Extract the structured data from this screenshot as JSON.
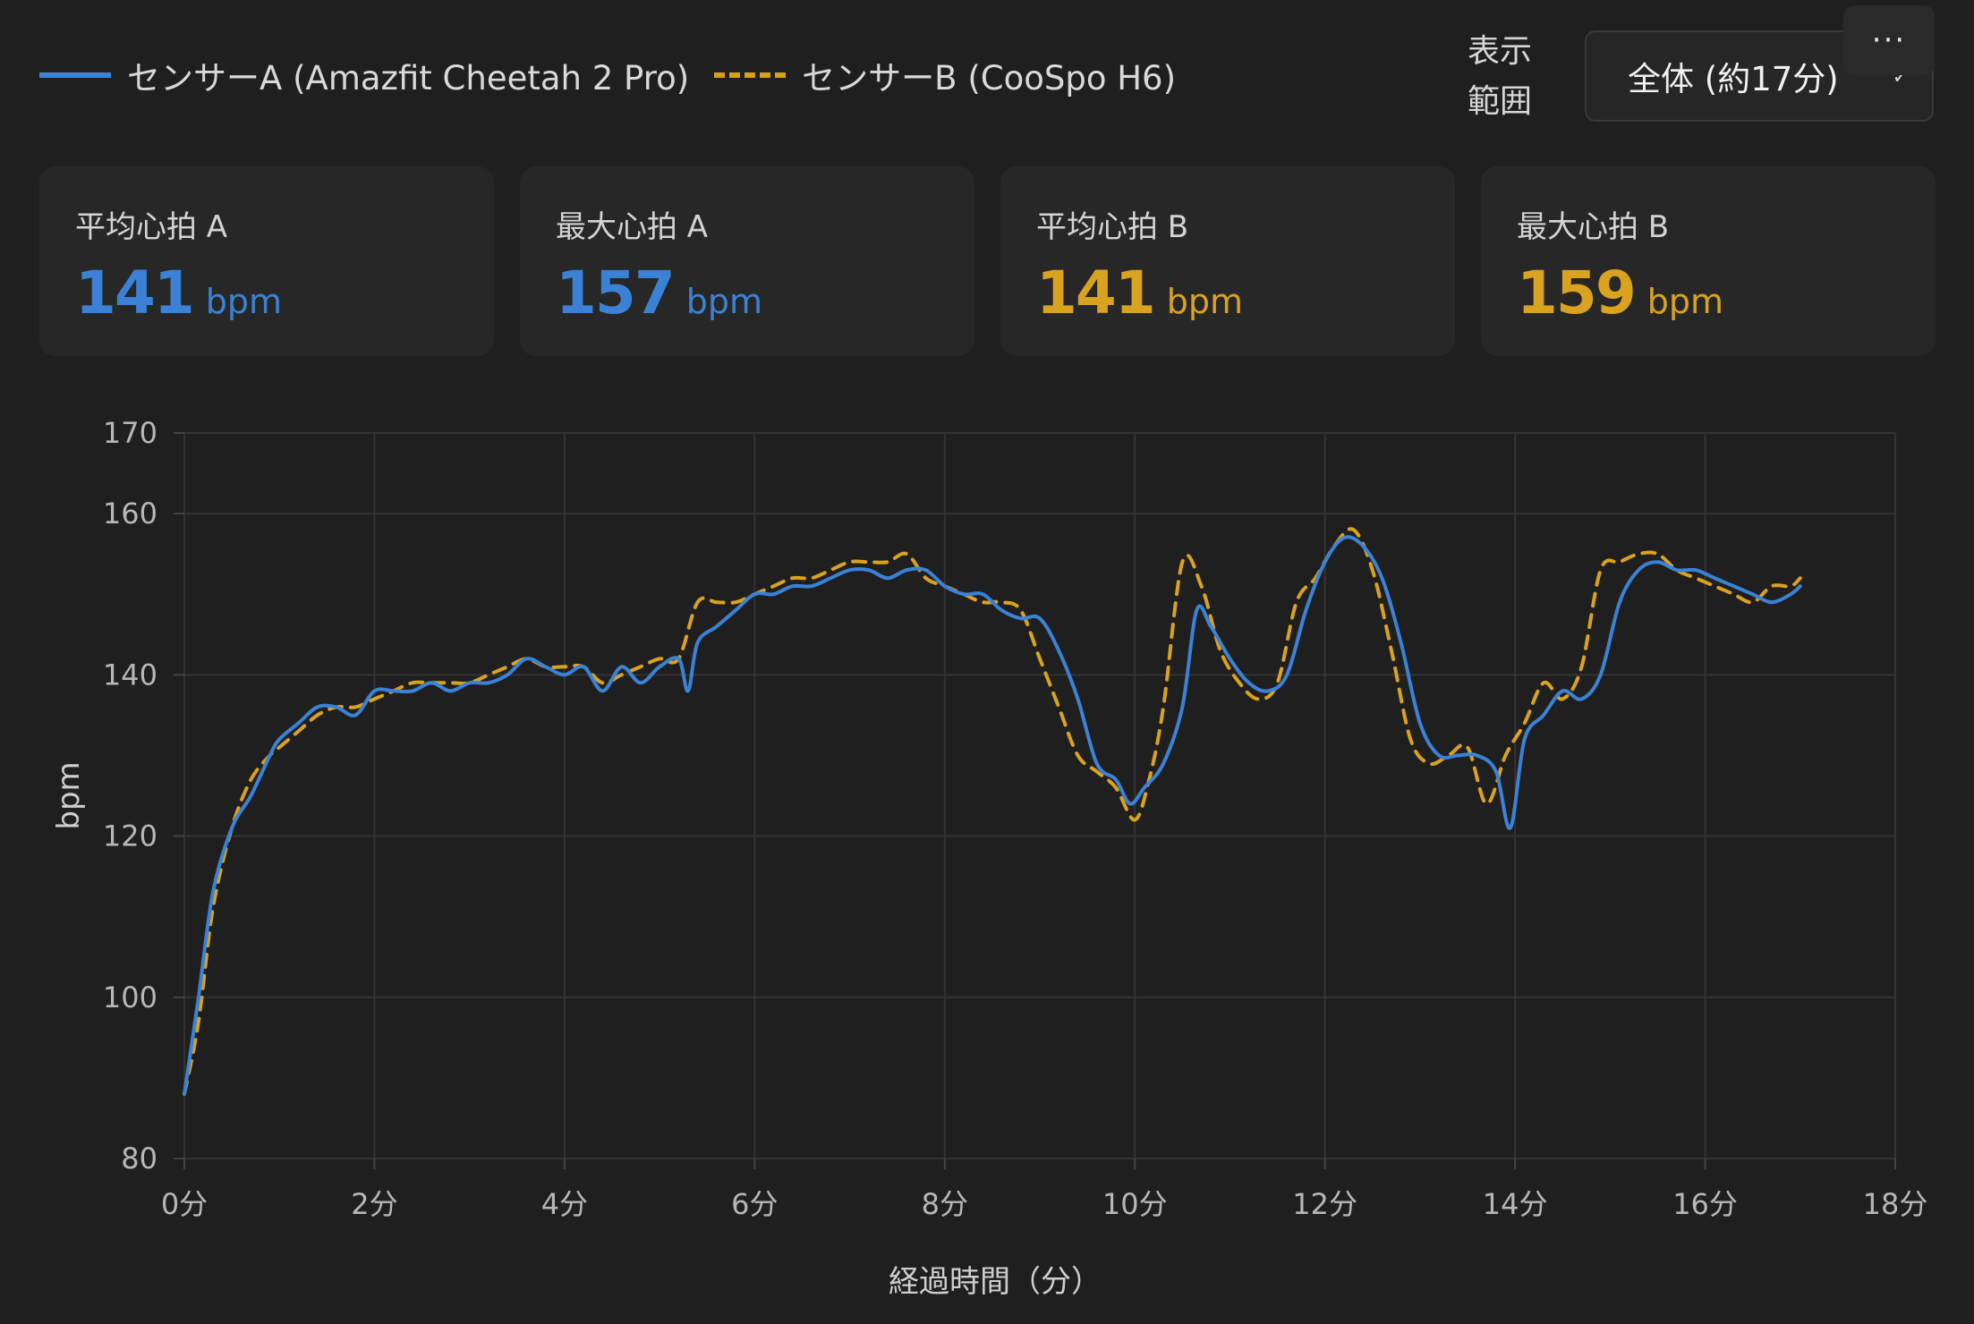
{
  "legend": {
    "a_label": "センサーA (Amazfit Cheetah 2 Pro)",
    "b_label": "センサーB (CooSpo H6)"
  },
  "range": {
    "label": "表示範囲",
    "label_line1": "表示",
    "label_line2": "範囲",
    "selected": "全体 (約17分)",
    "chevron_icon": "chevron-down-icon"
  },
  "more_button": {
    "label": "···",
    "icon": "more-horizontal-icon"
  },
  "stats": [
    {
      "label": "平均心拍 A",
      "value": "141",
      "unit": "bpm",
      "color": "#3b82d6"
    },
    {
      "label": "最大心拍 A",
      "value": "157",
      "unit": "bpm",
      "color": "#3b82d6"
    },
    {
      "label": "平均心拍 B",
      "value": "141",
      "unit": "bpm",
      "color": "#d9a21f"
    },
    {
      "label": "最大心拍 B",
      "value": "159",
      "unit": "bpm",
      "color": "#d9a21f"
    }
  ],
  "colors": {
    "sensor_a": "#3b82d6",
    "sensor_b": "#d9a21f",
    "grid": "#333333",
    "background": "#1f1f1f"
  },
  "chart_data": {
    "type": "line",
    "xlabel": "経過時間（分）",
    "ylabel": "bpm",
    "xlim": [
      0,
      18
    ],
    "ylim": [
      80,
      170
    ],
    "x_ticks": [
      0,
      2,
      4,
      6,
      8,
      10,
      12,
      14,
      16,
      18
    ],
    "x_tick_labels": [
      "0分",
      "2分",
      "4分",
      "6分",
      "8分",
      "10分",
      "12分",
      "14分",
      "16分",
      "18分"
    ],
    "y_ticks": [
      80,
      100,
      120,
      140,
      160,
      170
    ],
    "y_tick_labels": [
      "80",
      "100",
      "120",
      "140",
      "160",
      "170"
    ],
    "grid": true,
    "legend_position": "top-left",
    "series": [
      {
        "name": "センサーA (Amazfit Cheetah 2 Pro)",
        "style": "solid",
        "x": [
          0,
          0.15,
          0.3,
          0.5,
          0.7,
          0.9,
          1.0,
          1.2,
          1.4,
          1.6,
          1.8,
          2.0,
          2.2,
          2.4,
          2.6,
          2.8,
          3.0,
          3.2,
          3.4,
          3.6,
          3.8,
          4.0,
          4.2,
          4.4,
          4.6,
          4.8,
          5.0,
          5.2,
          5.3,
          5.4,
          5.6,
          5.8,
          6.0,
          6.2,
          6.4,
          6.6,
          6.8,
          7.0,
          7.2,
          7.4,
          7.6,
          7.8,
          8.0,
          8.2,
          8.4,
          8.6,
          8.8,
          9.0,
          9.2,
          9.4,
          9.6,
          9.8,
          9.95,
          10.1,
          10.3,
          10.5,
          10.65,
          10.8,
          11.0,
          11.2,
          11.4,
          11.6,
          11.8,
          12.0,
          12.2,
          12.4,
          12.6,
          12.8,
          13.0,
          13.2,
          13.4,
          13.6,
          13.8,
          13.95,
          14.1,
          14.3,
          14.5,
          14.7,
          14.9,
          15.1,
          15.3,
          15.5,
          15.7,
          15.9,
          16.1,
          16.3,
          16.5,
          16.7,
          16.9,
          17.0
        ],
        "y": [
          88,
          100,
          113,
          121,
          125,
          130,
          132,
          134,
          136,
          136,
          135,
          138,
          138,
          138,
          139,
          138,
          139,
          139,
          140,
          142,
          141,
          140,
          141,
          138,
          141,
          139,
          141,
          142,
          138,
          144,
          146,
          148,
          150,
          150,
          151,
          151,
          152,
          153,
          153,
          152,
          153,
          153,
          151,
          150,
          150,
          148,
          147,
          147,
          143,
          137,
          129,
          127,
          124,
          126,
          129,
          136,
          148,
          146,
          142,
          139,
          138,
          140,
          148,
          154,
          157,
          156,
          152,
          144,
          134,
          130,
          130,
          130,
          128,
          121,
          132,
          135,
          138,
          137,
          140,
          149,
          153,
          154,
          153,
          153,
          152,
          151,
          150,
          149,
          150,
          151
        ]
      },
      {
        "name": "センサーB (CooSpo H6)",
        "style": "dashed",
        "x": [
          0,
          0.15,
          0.3,
          0.5,
          0.7,
          0.9,
          1.0,
          1.2,
          1.4,
          1.6,
          1.8,
          2.0,
          2.2,
          2.4,
          2.6,
          2.8,
          3.0,
          3.2,
          3.4,
          3.6,
          3.8,
          4.0,
          4.2,
          4.4,
          4.6,
          4.8,
          5.0,
          5.2,
          5.4,
          5.6,
          5.8,
          6.0,
          6.2,
          6.4,
          6.6,
          6.8,
          7.0,
          7.2,
          7.4,
          7.6,
          7.8,
          8.0,
          8.2,
          8.4,
          8.6,
          8.8,
          9.0,
          9.2,
          9.4,
          9.6,
          9.8,
          10.0,
          10.15,
          10.3,
          10.5,
          10.7,
          10.9,
          11.1,
          11.3,
          11.5,
          11.7,
          11.9,
          12.1,
          12.3,
          12.5,
          12.7,
          12.9,
          13.1,
          13.3,
          13.5,
          13.7,
          13.9,
          14.1,
          14.3,
          14.5,
          14.7,
          14.9,
          15.1,
          15.3,
          15.5,
          15.7,
          15.9,
          16.1,
          16.3,
          16.5,
          16.7,
          16.9,
          17.0
        ],
        "y": [
          88,
          97,
          111,
          121,
          127,
          130,
          131,
          133,
          135,
          136,
          136,
          137,
          138,
          139,
          139,
          139,
          139,
          140,
          141,
          142,
          141,
          141,
          141,
          139,
          140,
          141,
          142,
          142,
          149,
          149,
          149,
          150,
          151,
          152,
          152,
          153,
          154,
          154,
          154,
          155,
          152,
          151,
          150,
          149,
          149,
          148,
          142,
          136,
          130,
          128,
          126,
          122,
          127,
          136,
          154,
          151,
          143,
          139,
          137,
          139,
          149,
          152,
          156,
          158,
          153,
          143,
          132,
          129,
          130,
          131,
          124,
          130,
          134,
          139,
          137,
          141,
          153,
          154,
          155,
          155,
          153,
          152,
          151,
          150,
          149,
          151,
          151,
          152
        ]
      }
    ]
  }
}
